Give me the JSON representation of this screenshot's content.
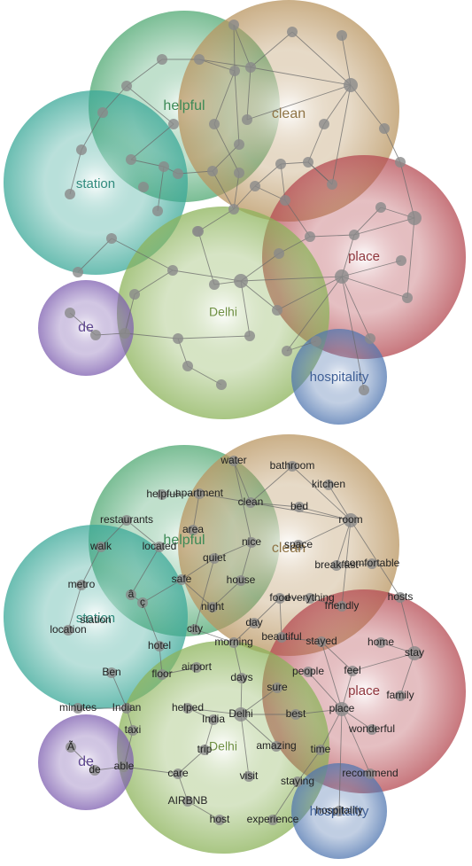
{
  "panel_top": {
    "clusters": [
      {
        "key": "helpful",
        "label": "helpful",
        "color": "#4fa872",
        "label_color": "#3d8a56"
      },
      {
        "key": "clean",
        "label": "clean",
        "color": "#b99560",
        "label_color": "#8f7445"
      },
      {
        "key": "station",
        "label": "station",
        "color": "#3aa898",
        "label_color": "#2f8a7c"
      },
      {
        "key": "place",
        "label": "place",
        "color": "#b54a52",
        "label_color": "#8f363d"
      },
      {
        "key": "delhi",
        "label": "Delhi",
        "color": "#8cb35a",
        "label_color": "#6e8f42"
      },
      {
        "key": "de",
        "label": "de",
        "color": "#7e5fb0",
        "label_color": "#5e4690"
      },
      {
        "key": "hospitality",
        "label": "hospitality",
        "color": "#5076b0",
        "label_color": "#3f5f96"
      }
    ]
  },
  "panel_bottom": {
    "clusters": [
      {
        "key": "helpful",
        "label": "helpful",
        "color": "#4fa872",
        "label_color": "#3d8a56"
      },
      {
        "key": "clean",
        "label": "clean",
        "color": "#b99560",
        "label_color": "#8f7445"
      },
      {
        "key": "station",
        "label": "station",
        "color": "#3aa898",
        "label_color": "#2f8a7c"
      },
      {
        "key": "place",
        "label": "place",
        "color": "#b54a52",
        "label_color": "#8f363d"
      },
      {
        "key": "delhi",
        "label": "Delhi",
        "color": "#8cb35a",
        "label_color": "#6e8f42"
      },
      {
        "key": "de",
        "label": "de",
        "color": "#7e5fb0",
        "label_color": "#5e4690"
      },
      {
        "key": "hospitality",
        "label": "hospitality",
        "color": "#5076b0",
        "label_color": "#3f5f96"
      }
    ],
    "words": [
      "water",
      "bathroom",
      "kitchen",
      "helpful",
      "apartment",
      "clean",
      "bed",
      "room",
      "restaurants",
      "area",
      "walk",
      "located",
      "nice",
      "space",
      "quiet",
      "comfortable",
      "breakfast",
      "house",
      "metro",
      "safe",
      "food",
      "everything",
      "hosts",
      "friendly",
      "station",
      "location",
      "night",
      "day",
      "city",
      "beautiful",
      "morning",
      "stayed",
      "home",
      "stay",
      "hotel",
      "Ben",
      "floor",
      "airport",
      "days",
      "sure",
      "people",
      "feel",
      "family",
      "place",
      "helped",
      "minutes",
      "Indian",
      "India",
      "Delhi",
      "best",
      "wonderful",
      "taxi",
      "trip",
      "amazing",
      "time",
      "able",
      "de",
      "care",
      "visit",
      "staying",
      "recommend",
      "AIRBNB",
      "host",
      "experience",
      "hospitality",
      "â",
      "ç",
      "Ã"
    ]
  },
  "node_color": "#8a8a8a",
  "edge_color": "#6a6a6a"
}
